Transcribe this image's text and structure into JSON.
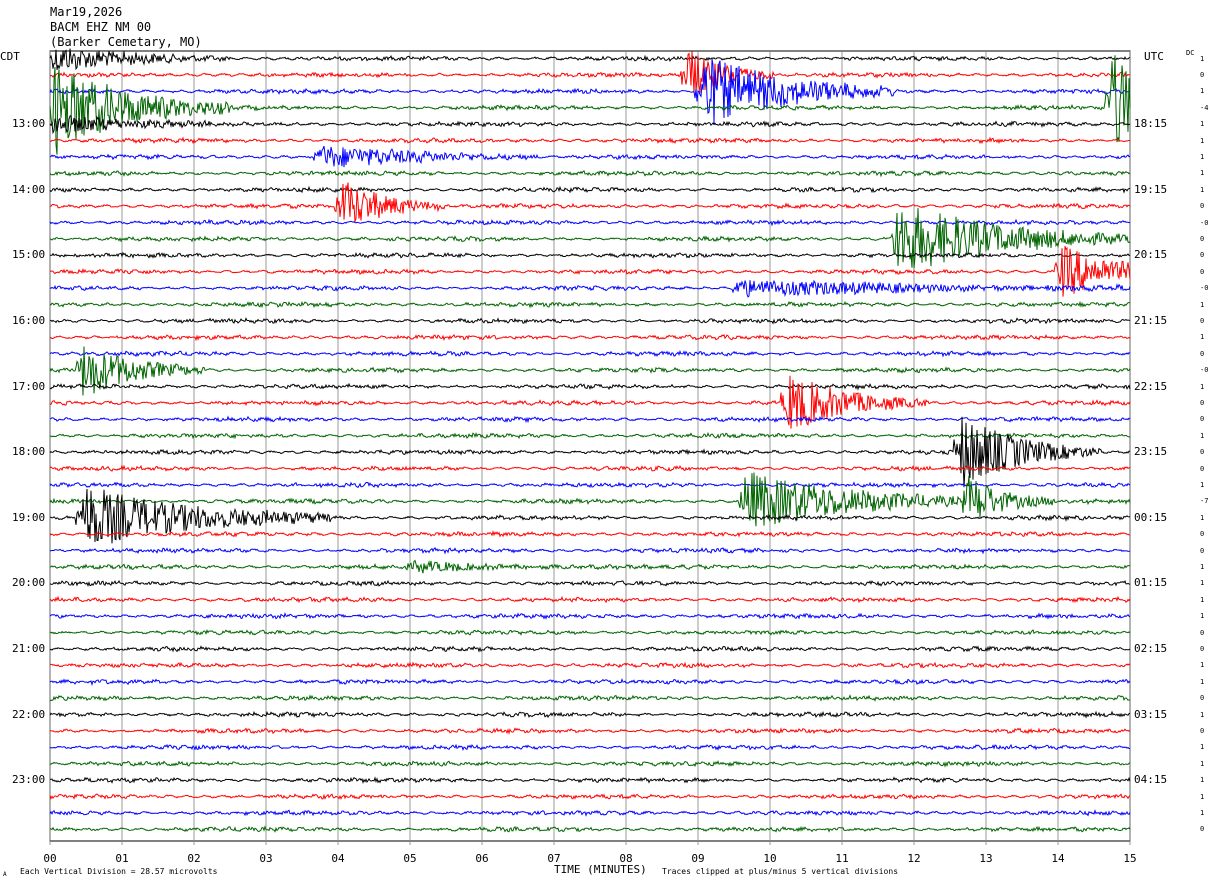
{
  "header": {
    "date": "Mar19,2026",
    "station": "BACM EHZ NM 00",
    "location": "(Barker Cemetary, MO)"
  },
  "left_tz": "CDT",
  "right_tz": "UTC",
  "dc_label": "DC",
  "footer": {
    "scale_note": "Each Vertical Division =   28.57 microvolts",
    "clip_note": "Traces clipped at plus/minus 5 vertical divisions",
    "corner_mark": "A"
  },
  "colors": {
    "black": "#000000",
    "red": "#ff0000",
    "blue": "#0000ff",
    "green": "#006400",
    "grid": "#808080"
  },
  "chart_data": {
    "type": "line",
    "title": "",
    "xlabel": "TIME (MINUTES)",
    "ylabel": "",
    "x_ticks": [
      "00",
      "01",
      "02",
      "03",
      "04",
      "05",
      "06",
      "07",
      "08",
      "09",
      "10",
      "11",
      "12",
      "13",
      "14",
      "15"
    ],
    "xlim": [
      0,
      15
    ],
    "trace_minutes": 15,
    "trace_count": 48,
    "color_cycle": [
      "black",
      "red",
      "blue",
      "green"
    ],
    "left_labels": [
      "13:00",
      "14:00",
      "15:00",
      "16:00",
      "17:00",
      "18:00",
      "19:00",
      "20:00",
      "21:00",
      "22:00",
      "23:00"
    ],
    "right_labels": [
      "18:15",
      "19:15",
      "20:15",
      "21:15",
      "22:15",
      "23:15",
      "00:15",
      "01:15",
      "02:15",
      "03:15",
      "04:15"
    ],
    "labels_first_trace": 4,
    "labels_every": 4,
    "dc_offsets": [
      "1",
      "0",
      "1",
      "-4",
      "1",
      "1",
      "1",
      "1",
      "1",
      "0",
      "-0",
      "0",
      "0",
      "0",
      "-0",
      "1",
      "0",
      "1",
      "0",
      "-0",
      "1",
      "0",
      "0",
      "1",
      "0",
      "0",
      "1",
      "-7",
      "1",
      "0",
      "0",
      "1",
      "1",
      "1",
      "1",
      "0",
      "0",
      "1",
      "1",
      "0",
      "1",
      "0",
      "1",
      "1",
      "1",
      "1",
      "1",
      "0"
    ],
    "events": [
      {
        "trace": 0,
        "minute": 0.0,
        "amp": 14,
        "dur": 1.0
      },
      {
        "trace": 1,
        "minute": 8.8,
        "amp": 30,
        "dur": 0.5
      },
      {
        "trace": 2,
        "minute": 9.0,
        "amp": 40,
        "dur": 1.1
      },
      {
        "trace": 3,
        "minute": 0.0,
        "amp": 50,
        "dur": 1.0
      },
      {
        "trace": 3,
        "minute": 14.7,
        "amp": 60,
        "dur": 0.6
      },
      {
        "trace": 4,
        "minute": 0.0,
        "amp": 12,
        "dur": 0.9
      },
      {
        "trace": 6,
        "minute": 3.7,
        "amp": 12,
        "dur": 1.3
      },
      {
        "trace": 9,
        "minute": 4.0,
        "amp": 30,
        "dur": 0.6
      },
      {
        "trace": 11,
        "minute": 11.7,
        "amp": 38,
        "dur": 1.4
      },
      {
        "trace": 13,
        "minute": 14.0,
        "amp": 30,
        "dur": 0.7
      },
      {
        "trace": 14,
        "minute": 9.5,
        "amp": 9,
        "dur": 2.3
      },
      {
        "trace": 19,
        "minute": 0.4,
        "amp": 30,
        "dur": 0.7
      },
      {
        "trace": 21,
        "minute": 10.2,
        "amp": 32,
        "dur": 0.8
      },
      {
        "trace": 24,
        "minute": 12.6,
        "amp": 40,
        "dur": 0.8
      },
      {
        "trace": 27,
        "minute": 9.6,
        "amp": 32,
        "dur": 1.4
      },
      {
        "trace": 27,
        "minute": 12.7,
        "amp": 26,
        "dur": 0.5
      },
      {
        "trace": 28,
        "minute": 0.4,
        "amp": 35,
        "dur": 1.4
      },
      {
        "trace": 31,
        "minute": 5.0,
        "amp": 5,
        "dur": 1.2
      }
    ]
  }
}
